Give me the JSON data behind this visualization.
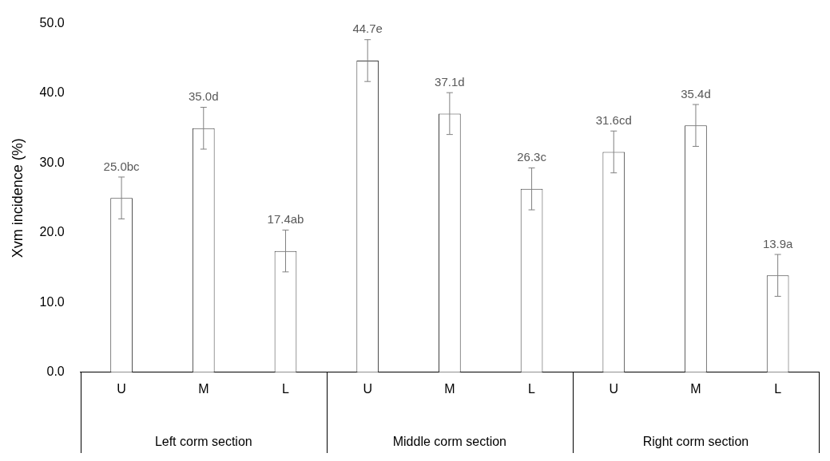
{
  "chart_data": {
    "type": "bar",
    "ylabel": "Xvm incidence (%)",
    "categories": [
      "U",
      "M",
      "L",
      "U",
      "M",
      "L",
      "U",
      "M",
      "L"
    ],
    "values": [
      25.0,
      35.0,
      17.4,
      44.7,
      37.1,
      26.3,
      31.6,
      35.4,
      13.9
    ],
    "errors": [
      3,
      3,
      3,
      3,
      3,
      3,
      3,
      3,
      3
    ],
    "value_labels": [
      "25.0bc",
      "35.0d",
      "17.4ab",
      "44.7e",
      "37.1d",
      "26.3c",
      "31.6cd",
      "35.4d",
      "13.9a"
    ],
    "color": "#ffffff",
    "ylim": [
      0,
      50
    ],
    "yticks": [
      {
        "value": 0,
        "label": "0.0"
      },
      {
        "value": 10,
        "label": "10.0"
      },
      {
        "value": 20,
        "label": "20.0"
      },
      {
        "value": 30,
        "label": "30.0"
      },
      {
        "value": 40,
        "label": "40.0"
      },
      {
        "value": 50,
        "label": "50.0"
      }
    ],
    "annotations": [
      "Left corm section",
      "Middle corm section",
      "Right corm section"
    ],
    "grid": false,
    "legend": false
  }
}
